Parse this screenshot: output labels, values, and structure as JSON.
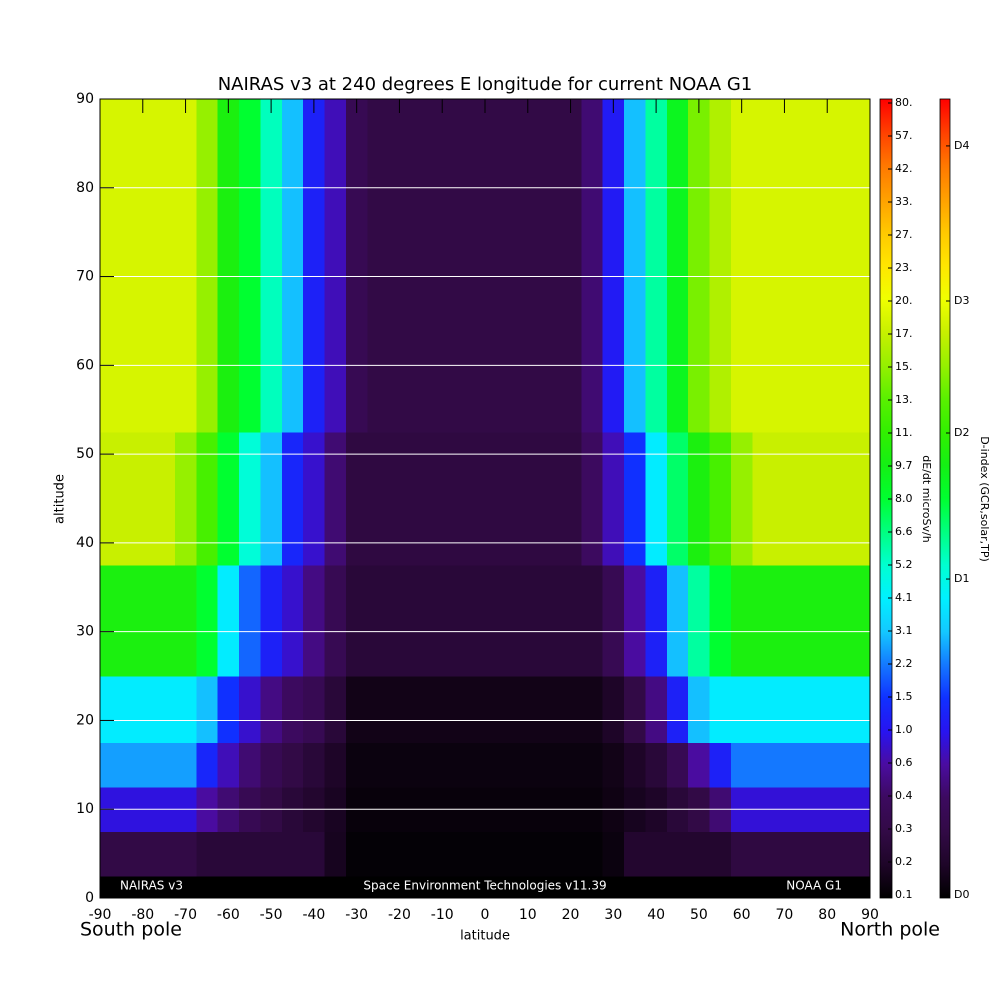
{
  "chart_data": {
    "type": "heatmap",
    "title": "NAIRAS v3 at 240 degrees E longitude for current NOAA G1",
    "x_label": "latitude",
    "y_label": "altitude",
    "z_label": "dE/dt microSv/h",
    "d_label": "D-index (GCR,solar,TP)",
    "annotations": [
      "NAIRAS v3",
      "Space Environment Technologies v11.39",
      "NOAA G1",
      "South pole",
      "North pole"
    ],
    "xlim": [
      -90,
      90
    ],
    "xticks": [
      -90,
      -80,
      -70,
      -60,
      -50,
      -40,
      -30,
      -20,
      -10,
      0,
      10,
      20,
      30,
      40,
      50,
      60,
      70,
      80,
      90
    ],
    "ylim": [
      0,
      90
    ],
    "yticks": [
      0,
      10,
      20,
      30,
      40,
      50,
      60,
      70,
      80,
      90
    ],
    "grid": true,
    "grid_color": "#ffffff",
    "zlim": [
      0.1,
      80
    ],
    "zticks": [
      0.1,
      0.2,
      0.3,
      0.4,
      0.6,
      {
        "value": 1,
        "label": "1.0"
      },
      1.5,
      2.2,
      3.1,
      4.1,
      5.2,
      6.6,
      {
        "value": 8,
        "label": "8.0"
      },
      9.7,
      {
        "value": 11,
        "label": "11."
      },
      {
        "value": 13,
        "label": "13."
      },
      {
        "value": 15,
        "label": "15."
      },
      {
        "value": 17,
        "label": "17."
      },
      {
        "value": 20,
        "label": "20."
      },
      {
        "value": 23,
        "label": "23."
      },
      {
        "value": 27,
        "label": "27."
      },
      {
        "value": 33,
        "label": "33."
      },
      {
        "value": 42,
        "label": "42."
      },
      {
        "value": 57,
        "label": "57."
      },
      {
        "value": 80,
        "label": "80."
      }
    ],
    "zcolors": [
      "#000000",
      "#1e0528",
      "#320a46",
      "#3c0a5f",
      "#4a0ca0",
      "#2814f0",
      "#1030ff",
      "#1478ff",
      "#14c8ff",
      "#00f0ff",
      "#00ffd0",
      "#00ff80",
      "#00ff30",
      "#14f014",
      "#32f000",
      "#5af000",
      "#96f000",
      "#c8f000",
      "#f0ff00",
      "#ffe600",
      "#ffc800",
      "#ffa000",
      "#ff7800",
      "#ff4000",
      "#ff0000"
    ],
    "dticks": [
      {
        "value": 0.1,
        "label": "D0"
      },
      {
        "value": 4.7,
        "label": "D1"
      },
      {
        "value": 11,
        "label": "D2"
      },
      {
        "value": 20,
        "label": "D3"
      },
      {
        "value": 52,
        "label": "D4"
      }
    ],
    "x": [
      -90,
      -85,
      -80,
      -75,
      -70,
      -65,
      -60,
      -55,
      -50,
      -45,
      -40,
      -35,
      -30,
      -25,
      -20,
      -15,
      -10,
      -5,
      0,
      5,
      10,
      15,
      20,
      25,
      30,
      35,
      40,
      45,
      50,
      55,
      60,
      65,
      70,
      75,
      80,
      85,
      90
    ],
    "y": [
      0,
      5,
      10,
      15,
      20,
      30,
      45,
      60,
      75,
      90
    ],
    "z": [
      [
        0.1,
        0.1,
        0.1,
        0.1,
        0.1,
        0.1,
        0.1,
        0.1,
        0.1,
        0.1,
        0.1,
        0.1,
        0.1,
        0.1,
        0.1,
        0.1,
        0.1,
        0.1,
        0.1,
        0.1,
        0.1,
        0.1,
        0.1,
        0.1,
        0.1,
        0.1,
        0.1,
        0.1,
        0.1,
        0.1,
        0.1,
        0.1,
        0.1,
        0.1,
        0.1,
        0.1,
        0.1
      ],
      [
        0.3,
        0.3,
        0.3,
        0.3,
        0.3,
        0.25,
        0.25,
        0.25,
        0.25,
        0.25,
        0.25,
        0.17,
        0.11,
        0.11,
        0.11,
        0.11,
        0.11,
        0.11,
        0.11,
        0.11,
        0.11,
        0.11,
        0.11,
        0.11,
        0.13,
        0.22,
        0.22,
        0.22,
        0.22,
        0.22,
        0.28,
        0.28,
        0.28,
        0.28,
        0.28,
        0.28,
        0.28
      ],
      [
        0.9,
        0.9,
        0.9,
        0.9,
        0.9,
        0.6,
        0.45,
        0.35,
        0.3,
        0.25,
        0.22,
        0.18,
        0.12,
        0.12,
        0.12,
        0.12,
        0.12,
        0.12,
        0.12,
        0.12,
        0.12,
        0.12,
        0.12,
        0.12,
        0.14,
        0.17,
        0.2,
        0.25,
        0.3,
        0.45,
        0.85,
        0.85,
        0.85,
        0.85,
        0.85,
        0.85,
        0.85
      ],
      [
        2.6,
        2.6,
        2.6,
        2.6,
        2.6,
        1.3,
        0.7,
        0.45,
        0.35,
        0.3,
        0.25,
        0.2,
        0.13,
        0.13,
        0.13,
        0.13,
        0.13,
        0.13,
        0.13,
        0.13,
        0.13,
        0.13,
        0.13,
        0.13,
        0.15,
        0.2,
        0.25,
        0.35,
        0.6,
        1.2,
        2.2,
        2.2,
        2.2,
        2.2,
        2.2,
        2.2,
        2.2
      ],
      [
        4,
        4,
        4,
        4,
        4,
        3,
        1.5,
        0.8,
        0.5,
        0.4,
        0.35,
        0.25,
        0.15,
        0.15,
        0.15,
        0.15,
        0.15,
        0.15,
        0.15,
        0.15,
        0.15,
        0.15,
        0.15,
        0.15,
        0.2,
        0.3,
        0.5,
        1.2,
        3,
        4,
        4,
        4,
        4,
        4,
        4,
        4,
        4
      ],
      [
        10,
        10,
        10,
        10,
        10,
        8,
        4,
        2,
        1.2,
        0.8,
        0.5,
        0.35,
        0.25,
        0.25,
        0.25,
        0.25,
        0.25,
        0.25,
        0.25,
        0.25,
        0.25,
        0.25,
        0.25,
        0.25,
        0.35,
        0.6,
        1.2,
        3,
        6,
        8,
        10,
        10,
        10,
        10,
        10,
        10,
        10
      ],
      [
        17,
        17,
        17,
        17,
        15,
        12,
        8,
        5,
        3,
        1.3,
        0.8,
        0.45,
        0.28,
        0.28,
        0.28,
        0.28,
        0.28,
        0.28,
        0.28,
        0.28,
        0.28,
        0.28,
        0.28,
        0.4,
        0.7,
        1.5,
        4,
        7,
        10,
        12,
        15,
        17,
        17,
        17,
        17,
        17,
        17
      ],
      [
        18,
        18,
        18,
        18,
        18,
        15,
        10,
        8,
        5.5,
        3,
        1.2,
        0.7,
        0.35,
        0.3,
        0.3,
        0.3,
        0.3,
        0.3,
        0.3,
        0.3,
        0.3,
        0.3,
        0.3,
        0.45,
        1.1,
        3,
        6,
        9,
        14,
        16,
        18,
        18,
        18,
        18,
        18,
        18,
        18
      ],
      [
        18,
        18,
        18,
        18,
        18,
        15,
        10,
        8,
        5.5,
        3,
        1.2,
        0.7,
        0.35,
        0.3,
        0.3,
        0.3,
        0.3,
        0.3,
        0.3,
        0.3,
        0.3,
        0.3,
        0.3,
        0.45,
        1.1,
        3,
        6,
        9,
        14,
        16,
        18,
        18,
        18,
        18,
        18,
        18,
        18
      ],
      [
        18,
        18,
        18,
        18,
        18,
        15,
        10,
        8,
        5.5,
        3,
        1.2,
        0.7,
        0.35,
        0.3,
        0.3,
        0.3,
        0.3,
        0.3,
        0.3,
        0.3,
        0.3,
        0.3,
        0.3,
        0.45,
        1.1,
        3,
        6,
        9,
        14,
        16,
        18,
        18,
        18,
        18,
        18,
        18,
        18
      ]
    ]
  }
}
